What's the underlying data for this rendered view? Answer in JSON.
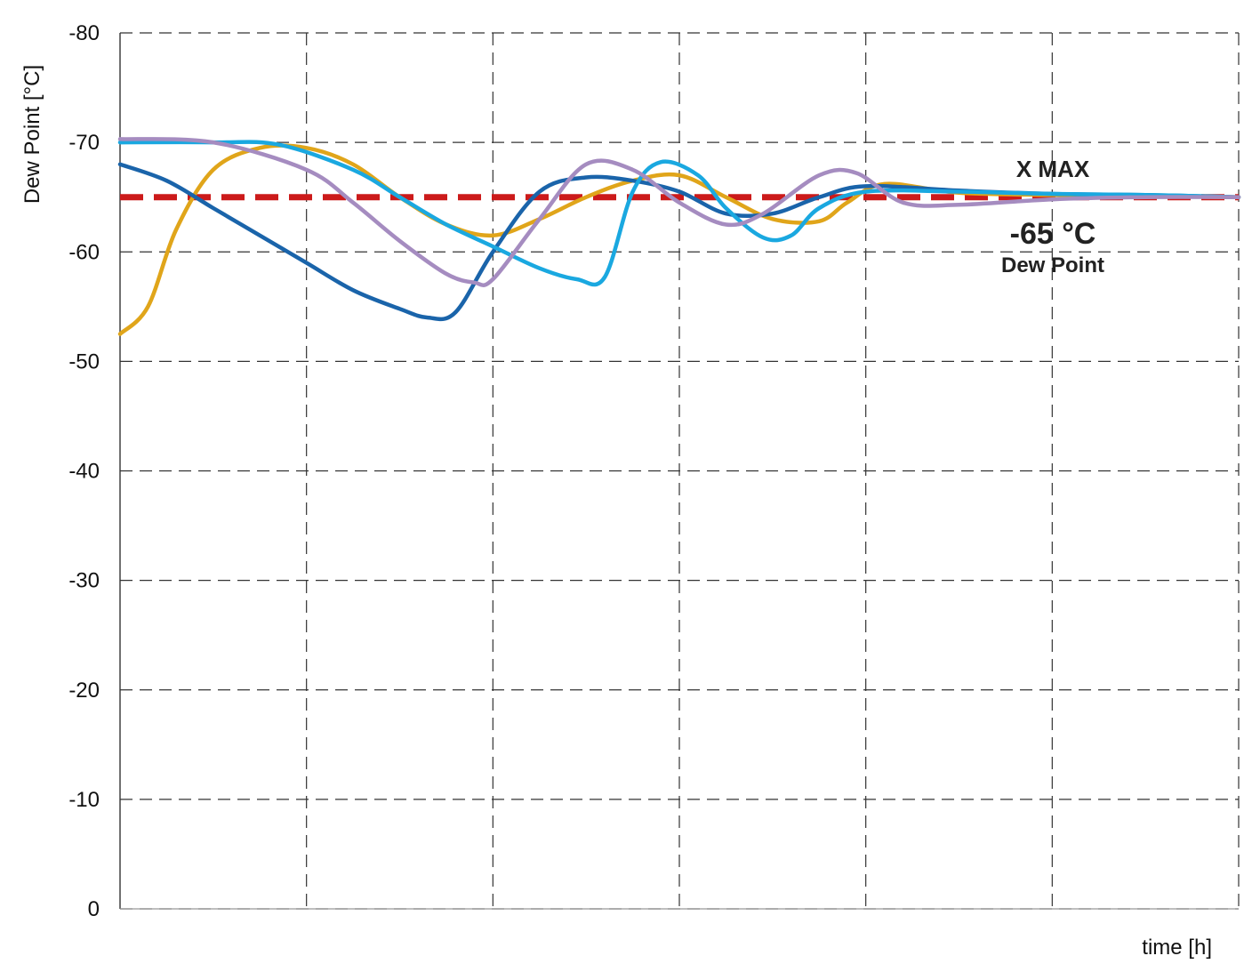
{
  "chart_data": {
    "type": "line",
    "xlabel": "time [h]",
    "ylabel": "Dew Point [°C]",
    "ylim": [
      0,
      -80
    ],
    "y_ticks": [
      "-80",
      "-70",
      "-60",
      "-50",
      "-40",
      "-30",
      "-20",
      "-10",
      "0"
    ],
    "x_range": [
      0,
      6
    ],
    "x_tick_labels_shown": false,
    "grid": true,
    "grid_style": "dashed",
    "reference_line": {
      "value": -65,
      "color": "#cc1a1a",
      "style": "dashed"
    },
    "annotation": {
      "title": "X MAX",
      "value": "-65 °C",
      "subtitle": "Dew Point"
    },
    "series": [
      {
        "color": "#e0a51a",
        "x": [
          0,
          0.15,
          0.3,
          0.5,
          0.75,
          1.0,
          1.25,
          1.5,
          1.75,
          2.0,
          2.25,
          2.5,
          2.75,
          3.0,
          3.25,
          3.5,
          3.75,
          3.9,
          4.1,
          4.5,
          5.0,
          5.5,
          6.0
        ],
        "y": [
          -52.5,
          -55,
          -62,
          -67.5,
          -69.5,
          -69.5,
          -68,
          -65,
          -62.5,
          -61.5,
          -63,
          -65,
          -66.5,
          -67,
          -65,
          -63,
          -62.8,
          -64.5,
          -66.2,
          -65.4,
          -65.2,
          -65.1,
          -65
        ]
      },
      {
        "color": "#1a64aa",
        "x": [
          0,
          0.25,
          0.5,
          0.75,
          1.0,
          1.25,
          1.5,
          1.65,
          1.8,
          2.0,
          2.25,
          2.5,
          2.75,
          3.0,
          3.25,
          3.5,
          3.75,
          4.0,
          4.5,
          5.0,
          5.5,
          6.0
        ],
        "y": [
          -68,
          -66.5,
          -64,
          -61.5,
          -59,
          -56.5,
          -54.8,
          -54,
          -54.5,
          -60,
          -65.5,
          -66.8,
          -66.5,
          -65.5,
          -63.5,
          -63.5,
          -65,
          -66,
          -65.6,
          -65.3,
          -65.2,
          -65
        ]
      },
      {
        "color": "#1aa8e0",
        "x": [
          0,
          0.5,
          0.85,
          1.25,
          1.5,
          1.75,
          2.0,
          2.25,
          2.45,
          2.6,
          2.75,
          2.9,
          3.1,
          3.25,
          3.45,
          3.6,
          3.75,
          4.0,
          4.5,
          5.0,
          5.5,
          6.0
        ],
        "y": [
          -70,
          -70,
          -69.8,
          -67.5,
          -65,
          -62.5,
          -60.5,
          -58.5,
          -57.5,
          -57.7,
          -65.5,
          -68.2,
          -67,
          -64,
          -61.3,
          -61.5,
          -64,
          -65.5,
          -65.5,
          -65.3,
          -65.2,
          -65
        ]
      },
      {
        "color": "#a58cc0",
        "x": [
          0,
          0.5,
          1.0,
          1.25,
          1.5,
          1.75,
          1.9,
          2.0,
          2.25,
          2.5,
          2.75,
          3.0,
          3.25,
          3.45,
          3.75,
          3.95,
          4.2,
          4.5,
          5.0,
          5.5,
          6.0
        ],
        "y": [
          -70.3,
          -70,
          -67.5,
          -64.5,
          -61,
          -58,
          -57.2,
          -57.5,
          -63,
          -68,
          -67.5,
          -64.5,
          -62.5,
          -63.5,
          -67,
          -67.2,
          -64.5,
          -64.3,
          -64.8,
          -65,
          -65
        ]
      }
    ]
  }
}
